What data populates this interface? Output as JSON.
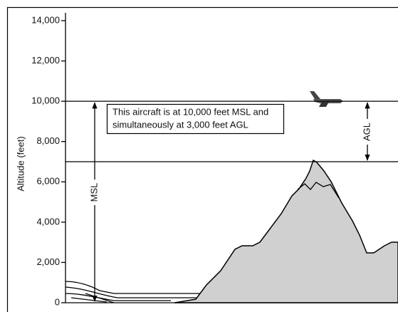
{
  "axis": {
    "label": "Altitude (feet)",
    "ylim": [
      0,
      14000
    ],
    "yticks": [
      {
        "value": 0,
        "label": "0"
      },
      {
        "value": 2000,
        "label": "2,000"
      },
      {
        "value": 4000,
        "label": "4,000"
      },
      {
        "value": 6000,
        "label": "6,000"
      },
      {
        "value": 8000,
        "label": "8,000"
      },
      {
        "value": 10000,
        "label": "10,000"
      },
      {
        "value": 12000,
        "label": "12,000"
      },
      {
        "value": 14000,
        "label": "14,000"
      }
    ]
  },
  "annotation": {
    "lines": [
      "This aircraft is at 10,000 feet MSL and",
      "simultaneously at 3,000 feet AGL"
    ]
  },
  "msl": {
    "label": "MSL",
    "altitude": 10000
  },
  "agl": {
    "label": "AGL",
    "ground": 7000
  }
}
